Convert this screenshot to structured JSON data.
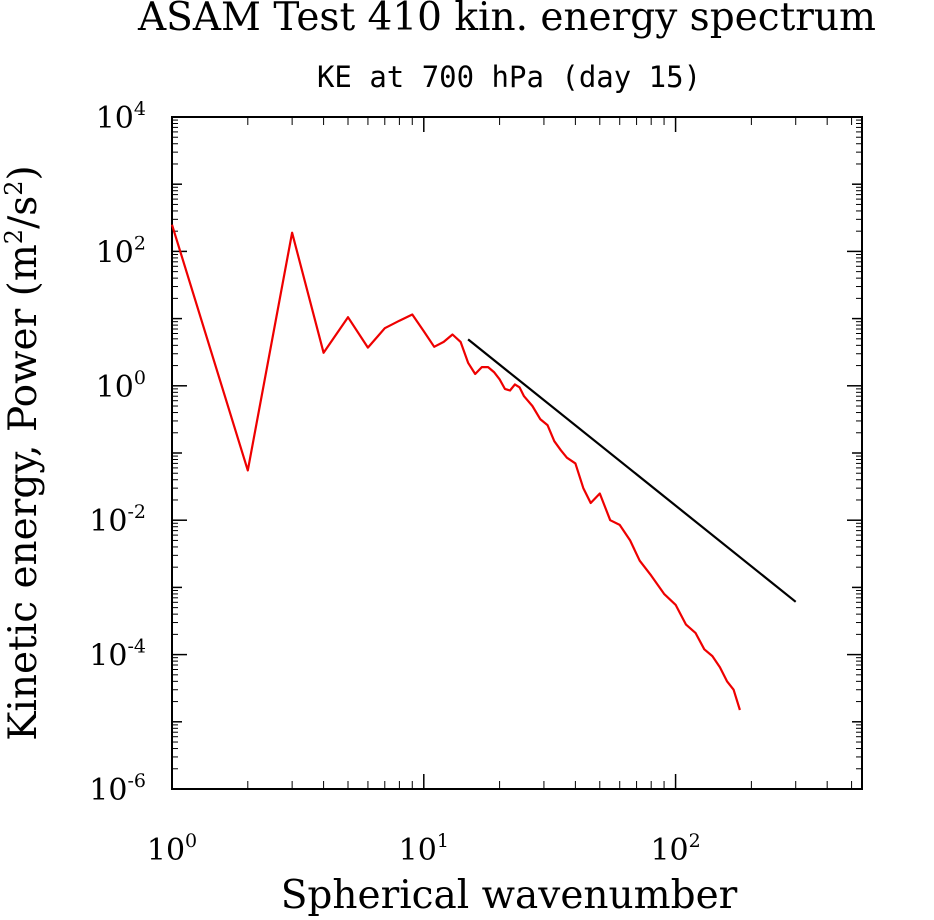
{
  "title": "ASAM Test 410 kin. energy spectrum",
  "subtitle": "KE at 700 hPa (day 15)",
  "chart_data": {
    "type": "line",
    "xscale": "log",
    "yscale": "log",
    "xlim": [
      1,
      550
    ],
    "ylim": [
      1e-06,
      10000
    ],
    "xlabel": "Spherical wavenumber",
    "ylabel": {
      "main": "Kinetic energy, Power (m",
      "sup1": "2",
      "mid": "/s",
      "sup2": "2",
      "end": ")"
    },
    "x_ticks": [
      {
        "base": "10",
        "exp": "0",
        "value": 1
      },
      {
        "base": "10",
        "exp": "1",
        "value": 10
      },
      {
        "base": "10",
        "exp": "2",
        "value": 100
      }
    ],
    "y_ticks": [
      {
        "base": "10",
        "exp": "4",
        "value": 10000
      },
      {
        "base": "10",
        "exp": "2",
        "value": 100
      },
      {
        "base": "10",
        "exp": "0",
        "value": 1
      },
      {
        "base": "10",
        "exp": "-2",
        "value": 0.01
      },
      {
        "base": "10",
        "exp": "-4",
        "value": 0.0001
      },
      {
        "base": "10",
        "exp": "-6",
        "value": 1e-06
      }
    ],
    "series": [
      {
        "color": "#ee0000",
        "x": [
          1,
          2,
          3,
          4,
          5,
          6,
          7,
          8,
          9,
          10,
          11,
          12,
          13,
          14,
          15,
          16,
          17,
          18,
          19,
          20,
          21,
          22,
          23,
          24,
          25,
          27,
          29,
          31,
          33,
          35,
          37,
          40,
          43,
          46,
          50,
          55,
          60,
          66,
          72,
          80,
          90,
          100,
          110,
          120,
          130,
          140,
          150,
          160,
          170,
          180
        ],
        "y": [
          250,
          0.055,
          190,
          3.1,
          10.5,
          3.7,
          7.2,
          9.3,
          11.5,
          6.5,
          3.8,
          4.5,
          5.8,
          4.5,
          2.2,
          1.5,
          1.9,
          1.9,
          1.6,
          1.25,
          0.9,
          0.85,
          1.05,
          0.95,
          0.7,
          0.5,
          0.32,
          0.26,
          0.15,
          0.11,
          0.085,
          0.07,
          0.03,
          0.018,
          0.025,
          0.01,
          0.0085,
          0.005,
          0.0025,
          0.0015,
          0.0008,
          0.00055,
          0.00028,
          0.00021,
          0.00012,
          9.5e-05,
          6.5e-05,
          4e-05,
          3e-05,
          1.5e-05
        ]
      },
      {
        "color": "#000000",
        "x": [
          15,
          300
        ],
        "y": [
          4.9,
          0.00061
        ]
      }
    ]
  }
}
